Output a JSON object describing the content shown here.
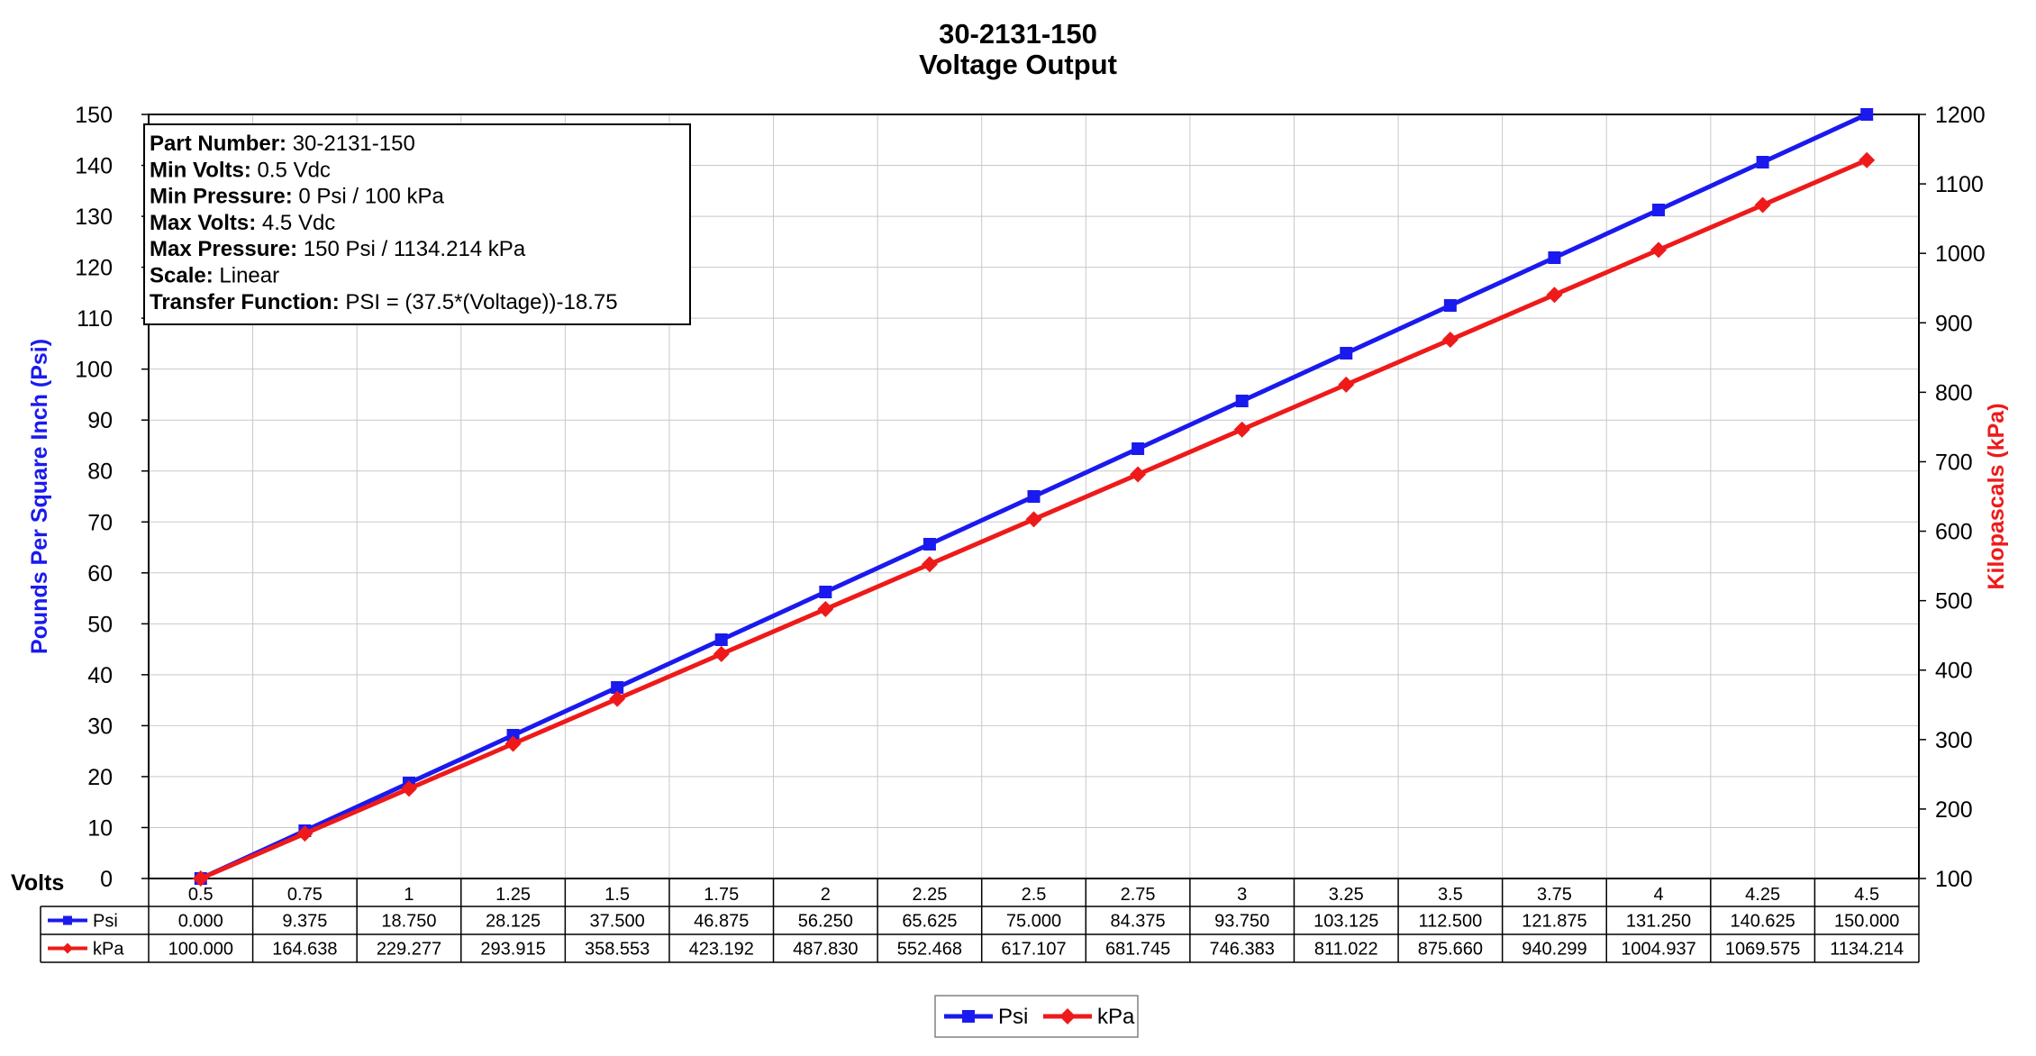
{
  "chart_data": {
    "type": "line",
    "title": [
      "30-2131-150",
      "Voltage Output"
    ],
    "x": [
      "0.5",
      "0.75",
      "1",
      "1.25",
      "1.5",
      "1.75",
      "2",
      "2.25",
      "2.5",
      "2.75",
      "3",
      "3.25",
      "3.5",
      "3.75",
      "4",
      "4.25",
      "4.5"
    ],
    "xlabel": "Volts",
    "ylabel": "Pounds Per Square Inch (Psi)",
    "y2label": "Kilopascals (kPa)",
    "ylim": [
      0,
      150
    ],
    "y2lim": [
      100,
      1200
    ],
    "yticks": [
      0,
      10,
      20,
      30,
      40,
      50,
      60,
      70,
      80,
      90,
      100,
      110,
      120,
      130,
      140,
      150
    ],
    "y2ticks": [
      100,
      200,
      300,
      400,
      500,
      600,
      700,
      800,
      900,
      1000,
      1100,
      1200
    ],
    "grid": true,
    "legend_position": "bottom",
    "series": [
      {
        "name": "Psi",
        "axis": "left",
        "color": "#1a1aee",
        "marker": "square",
        "values": [
          0,
          9.375,
          18.75,
          28.125,
          37.5,
          46.875,
          56.25,
          65.625,
          75,
          84.375,
          93.75,
          103.125,
          112.5,
          121.875,
          131.25,
          140.625,
          150
        ],
        "labels": [
          "0.000",
          "9.375",
          "18.750",
          "28.125",
          "37.500",
          "46.875",
          "56.250",
          "65.625",
          "75.000",
          "84.375",
          "93.750",
          "103.125",
          "112.500",
          "121.875",
          "131.250",
          "140.625",
          "150.000"
        ]
      },
      {
        "name": "kPa",
        "axis": "right",
        "color": "#ee1a1a",
        "marker": "diamond",
        "values": [
          100,
          164.638,
          229.277,
          293.915,
          358.553,
          423.192,
          487.83,
          552.468,
          617.107,
          681.745,
          746.383,
          811.022,
          875.66,
          940.299,
          1004.937,
          1069.575,
          1134.214
        ],
        "labels": [
          "100.000",
          "164.638",
          "229.277",
          "293.915",
          "358.553",
          "423.192",
          "487.830",
          "552.468",
          "617.107",
          "681.745",
          "746.383",
          "811.022",
          "875.660",
          "940.299",
          "1004.937",
          "1069.575",
          "1134.214"
        ]
      }
    ],
    "info_box": [
      {
        "key": "Part Number:",
        "value": " 30-2131-150"
      },
      {
        "key": "Min Volts:",
        "value": " 0.5 Vdc"
      },
      {
        "key": "Min Pressure:",
        "value": " 0 Psi / 100 kPa"
      },
      {
        "key": "Max Volts:",
        "value": " 4.5 Vdc"
      },
      {
        "key": "Max Pressure:",
        "value": " 150 Psi / 1134.214 kPa"
      },
      {
        "key": "Scale:",
        "value": " Linear"
      },
      {
        "key": "Transfer Function:",
        "value": " PSI = (37.5*(Voltage))-18.75"
      }
    ]
  }
}
